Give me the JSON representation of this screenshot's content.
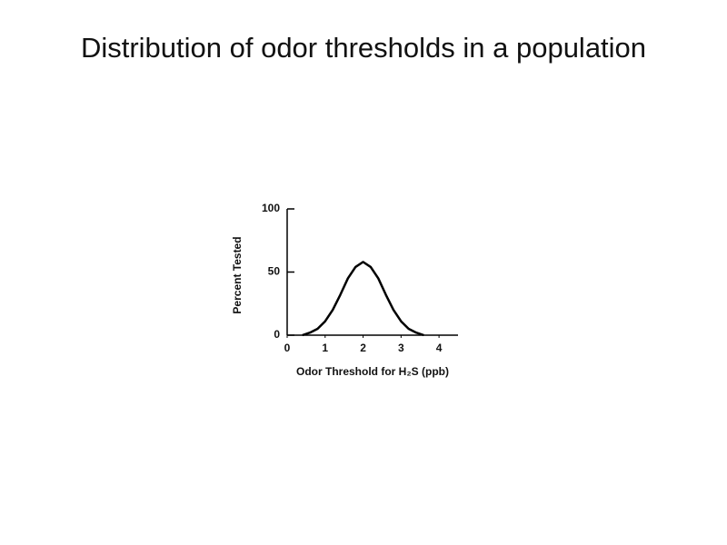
{
  "chart_data": {
    "type": "line",
    "title": "Distribution of odor thresholds in a population",
    "x_label": "Odor Threshold for H₂S (ppb)",
    "y_label": "Percent Tested",
    "x": [
      0.4,
      0.6,
      0.8,
      1.0,
      1.2,
      1.4,
      1.6,
      1.8,
      2.0,
      2.2,
      2.4,
      2.6,
      2.8,
      3.0,
      3.2,
      3.4,
      3.6
    ],
    "values": [
      0,
      2,
      5,
      11,
      20,
      32,
      45,
      54,
      58,
      54,
      45,
      32,
      20,
      11,
      5,
      2,
      0
    ],
    "color": "#000000",
    "xlim": [
      0,
      4.5
    ],
    "xticks": [
      0,
      1,
      2,
      3,
      4
    ],
    "ylim": [
      0,
      100
    ],
    "yticks": [
      0,
      50,
      100
    ],
    "grid": false
  }
}
